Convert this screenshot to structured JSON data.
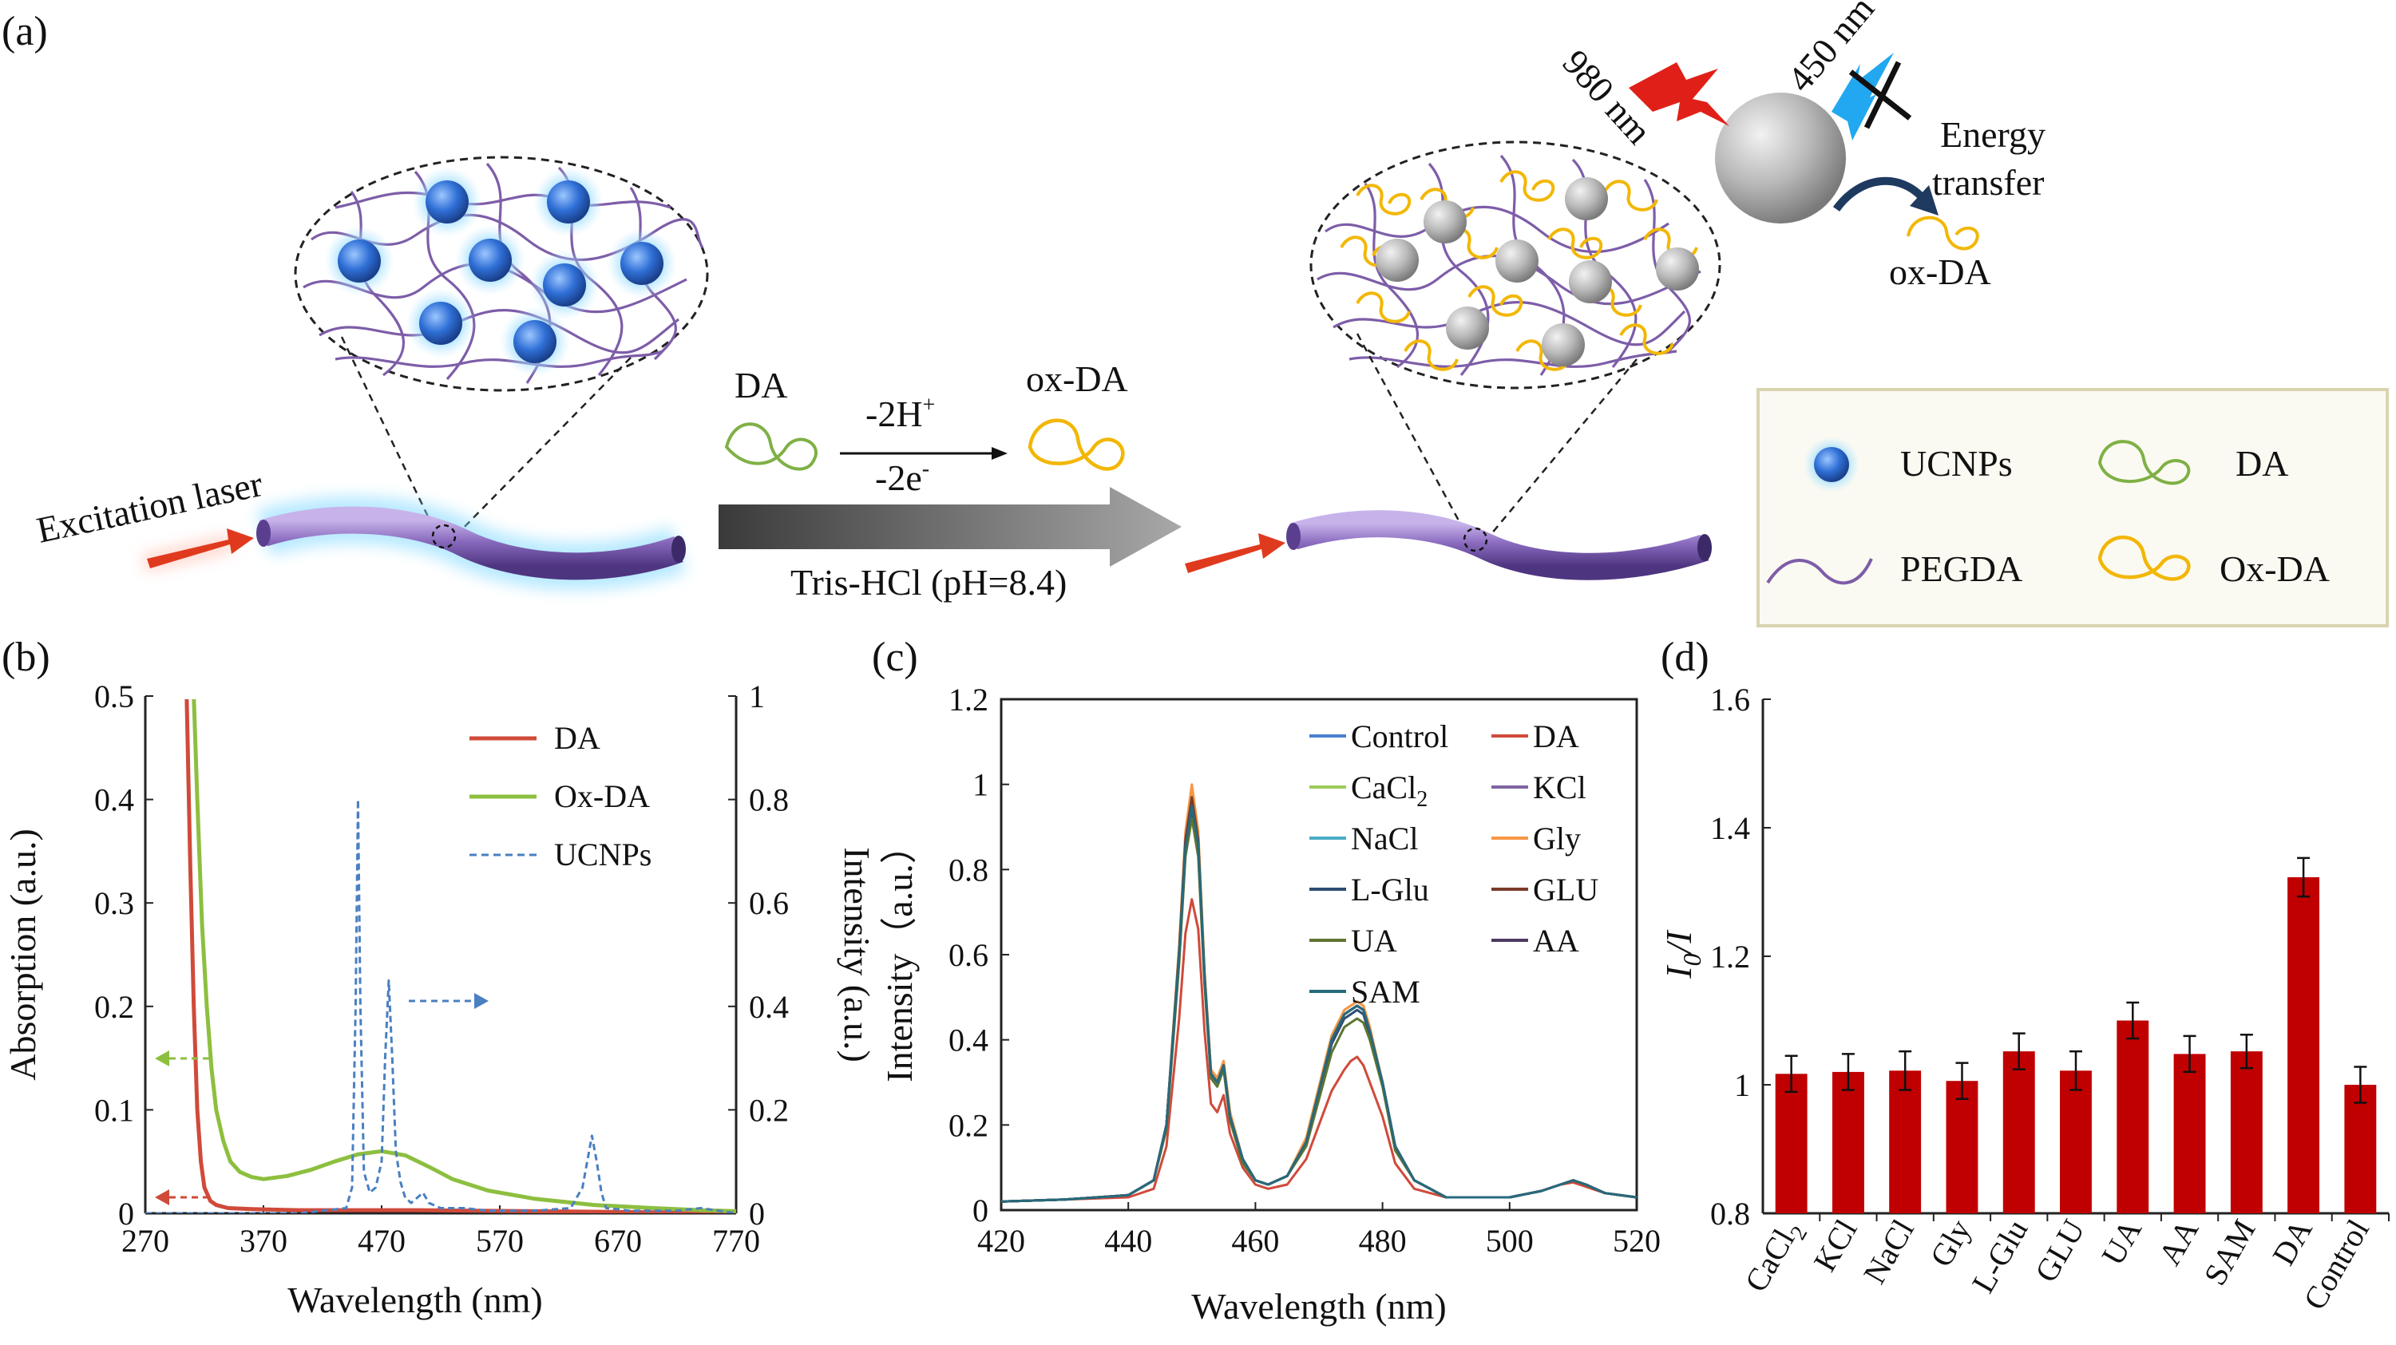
{
  "panel_a": {
    "label": "(a)",
    "excitation_laser": "Excitation laser",
    "reactant": "DA",
    "product": "ox-DA",
    "reaction_top": "-2H",
    "reaction_top_sup": "+",
    "reaction_bottom": "-2e",
    "reaction_bottom_sup": "-",
    "buffer": "Tris-HCl (pH=8.4)",
    "wavelength_in": "980 nm",
    "wavelength_out": "450 nm",
    "energy_transfer_line1": "Energy",
    "energy_transfer_line2": "transfer",
    "acceptor": "ox-DA",
    "legend": {
      "ucnps": "UCNPs",
      "da": "DA",
      "pegda": "PEGDA",
      "oxda": "Ox-DA"
    },
    "colors": {
      "ucnp_blue": "#2f6fd6",
      "fiber_purple": "#8a6bbf",
      "da_green": "#7fb046",
      "oxda_yellow": "#f2b705",
      "laser_red": "#e03a1e",
      "legend_bg": "#fbfaf2",
      "legend_border": "#d8d4b0"
    }
  },
  "chart_data": [
    {
      "panel": "(b)",
      "type": "line",
      "xlabel": "Wavelength (nm)",
      "ylabel_left": "Absorption (a.u.)",
      "ylabel_right": "Intensity (a.u.)",
      "xlim": [
        270,
        770
      ],
      "ylim_left": [
        0,
        0.5
      ],
      "ylim_right": [
        0,
        1
      ],
      "xticks": [
        "270",
        "370",
        "470",
        "570",
        "670",
        "770"
      ],
      "yticks_left": [
        "0",
        "0.1",
        "0.2",
        "0.3",
        "0.4",
        "0.5"
      ],
      "yticks_right": [
        "0",
        "0.2",
        "0.4",
        "0.6",
        "0.8",
        "1"
      ],
      "series": [
        {
          "name": "DA",
          "axis": "left",
          "color": "#d04a3a",
          "dash": false,
          "x": [
            305,
            308,
            311,
            314,
            317,
            320,
            325,
            330,
            340,
            360,
            400,
            500,
            600,
            700,
            770
          ],
          "y": [
            0.5,
            0.34,
            0.2,
            0.1,
            0.05,
            0.025,
            0.012,
            0.008,
            0.005,
            0.004,
            0.003,
            0.003,
            0.002,
            0.001,
            0.001
          ]
        },
        {
          "name": "Ox-DA",
          "axis": "left",
          "color": "#8dbf3f",
          "dash": false,
          "x": [
            311,
            314,
            318,
            322,
            326,
            330,
            336,
            342,
            350,
            360,
            370,
            390,
            410,
            430,
            450,
            470,
            490,
            510,
            530,
            560,
            600,
            650,
            700,
            740,
            770
          ],
          "y": [
            0.5,
            0.4,
            0.28,
            0.2,
            0.14,
            0.1,
            0.07,
            0.05,
            0.04,
            0.035,
            0.033,
            0.036,
            0.042,
            0.05,
            0.057,
            0.06,
            0.056,
            0.045,
            0.033,
            0.022,
            0.014,
            0.008,
            0.005,
            0.003,
            0.002
          ]
        },
        {
          "name": "UCNPs",
          "axis": "right",
          "color": "#4a7fc1",
          "dash": true,
          "x": [
            270,
            400,
            440,
            445,
            448,
            450,
            452,
            455,
            460,
            465,
            470,
            473,
            476,
            479,
            482,
            486,
            490,
            495,
            500,
            505,
            510,
            520,
            540,
            560,
            600,
            630,
            640,
            644,
            648,
            652,
            656,
            660,
            680,
            720,
            740,
            770
          ],
          "y": [
            0,
            0,
            0.01,
            0.05,
            0.4,
            0.8,
            0.4,
            0.08,
            0.04,
            0.05,
            0.1,
            0.3,
            0.45,
            0.3,
            0.12,
            0.06,
            0.03,
            0.02,
            0.03,
            0.04,
            0.02,
            0.01,
            0.01,
            0.005,
            0.005,
            0.01,
            0.05,
            0.1,
            0.15,
            0.1,
            0.04,
            0.01,
            0.005,
            0.005,
            0.01,
            0
          ]
        }
      ],
      "legend": [
        "DA",
        "Ox-DA",
        "UCNPs"
      ]
    },
    {
      "panel": "(c)",
      "type": "line",
      "xlabel": "Wavelength (nm)",
      "ylabel": "Intensity（a.u.）",
      "xlim": [
        420,
        520
      ],
      "ylim": [
        0,
        1.2
      ],
      "xticks": [
        "420",
        "440",
        "460",
        "480",
        "500",
        "520"
      ],
      "yticks": [
        "0",
        "0.2",
        "0.4",
        "0.6",
        "0.8",
        "1",
        "1.2"
      ],
      "x": [
        420,
        430,
        440,
        444,
        446,
        448,
        449,
        450,
        451,
        452,
        453,
        454,
        455,
        456,
        458,
        460,
        462,
        465,
        468,
        470,
        472,
        474,
        475,
        476,
        477,
        478,
        480,
        482,
        485,
        490,
        500,
        505,
        508,
        510,
        512,
        515,
        520
      ],
      "series": [
        {
          "name": "Control",
          "color": "#4b7fd0",
          "y": [
            0.02,
            0.025,
            0.035,
            0.07,
            0.2,
            0.6,
            0.85,
            0.95,
            0.86,
            0.55,
            0.32,
            0.3,
            0.34,
            0.22,
            0.12,
            0.07,
            0.06,
            0.08,
            0.16,
            0.28,
            0.4,
            0.46,
            0.47,
            0.48,
            0.47,
            0.42,
            0.3,
            0.15,
            0.07,
            0.03,
            0.03,
            0.045,
            0.06,
            0.07,
            0.06,
            0.04,
            0.03
          ]
        },
        {
          "name": "DA",
          "color": "#d04a3a",
          "y": [
            0.02,
            0.025,
            0.03,
            0.05,
            0.15,
            0.45,
            0.65,
            0.73,
            0.66,
            0.42,
            0.25,
            0.23,
            0.27,
            0.18,
            0.1,
            0.06,
            0.05,
            0.06,
            0.12,
            0.2,
            0.28,
            0.33,
            0.35,
            0.36,
            0.34,
            0.3,
            0.22,
            0.11,
            0.05,
            0.03,
            0.03,
            0.045,
            0.06,
            0.065,
            0.055,
            0.04,
            0.03
          ]
        },
        {
          "name": "CaCl2",
          "label": "CaCl",
          "sub": "2",
          "color": "#9ccc5a",
          "y": [
            0.02,
            0.025,
            0.035,
            0.07,
            0.2,
            0.62,
            0.88,
            0.99,
            0.88,
            0.56,
            0.33,
            0.31,
            0.35,
            0.23,
            0.12,
            0.07,
            0.06,
            0.08,
            0.17,
            0.29,
            0.41,
            0.47,
            0.48,
            0.49,
            0.48,
            0.43,
            0.3,
            0.15,
            0.07,
            0.03,
            0.03,
            0.045,
            0.06,
            0.07,
            0.06,
            0.04,
            0.03
          ]
        },
        {
          "name": "KCl",
          "color": "#8064a2",
          "y": [
            0.02,
            0.025,
            0.035,
            0.07,
            0.2,
            0.6,
            0.86,
            0.96,
            0.86,
            0.55,
            0.32,
            0.3,
            0.34,
            0.22,
            0.12,
            0.07,
            0.06,
            0.08,
            0.16,
            0.28,
            0.4,
            0.46,
            0.47,
            0.48,
            0.47,
            0.42,
            0.3,
            0.15,
            0.07,
            0.03,
            0.03,
            0.045,
            0.06,
            0.07,
            0.06,
            0.04,
            0.03
          ]
        },
        {
          "name": "NaCl",
          "color": "#4bacc6",
          "y": [
            0.02,
            0.025,
            0.035,
            0.07,
            0.2,
            0.61,
            0.87,
            0.97,
            0.87,
            0.55,
            0.32,
            0.3,
            0.34,
            0.22,
            0.12,
            0.07,
            0.06,
            0.08,
            0.16,
            0.28,
            0.4,
            0.46,
            0.47,
            0.48,
            0.47,
            0.42,
            0.3,
            0.15,
            0.07,
            0.03,
            0.03,
            0.045,
            0.06,
            0.07,
            0.06,
            0.04,
            0.03
          ]
        },
        {
          "name": "Gly",
          "color": "#f79646",
          "y": [
            0.02,
            0.025,
            0.035,
            0.07,
            0.2,
            0.62,
            0.89,
            1.0,
            0.89,
            0.56,
            0.33,
            0.31,
            0.35,
            0.23,
            0.12,
            0.07,
            0.06,
            0.08,
            0.17,
            0.29,
            0.41,
            0.47,
            0.48,
            0.49,
            0.48,
            0.43,
            0.3,
            0.15,
            0.07,
            0.03,
            0.03,
            0.045,
            0.06,
            0.07,
            0.06,
            0.04,
            0.03
          ]
        },
        {
          "name": "L-Glu",
          "color": "#2c4d75",
          "y": [
            0.02,
            0.025,
            0.035,
            0.07,
            0.2,
            0.6,
            0.85,
            0.94,
            0.85,
            0.54,
            0.32,
            0.3,
            0.34,
            0.22,
            0.12,
            0.07,
            0.06,
            0.08,
            0.16,
            0.27,
            0.39,
            0.45,
            0.46,
            0.47,
            0.46,
            0.41,
            0.3,
            0.15,
            0.07,
            0.03,
            0.03,
            0.045,
            0.06,
            0.07,
            0.06,
            0.04,
            0.03
          ]
        },
        {
          "name": "GLU",
          "color": "#7b3a2a",
          "y": [
            0.02,
            0.025,
            0.035,
            0.07,
            0.2,
            0.61,
            0.87,
            0.97,
            0.87,
            0.55,
            0.32,
            0.3,
            0.34,
            0.22,
            0.12,
            0.07,
            0.06,
            0.08,
            0.16,
            0.28,
            0.4,
            0.46,
            0.47,
            0.48,
            0.47,
            0.42,
            0.3,
            0.15,
            0.07,
            0.03,
            0.03,
            0.045,
            0.06,
            0.07,
            0.06,
            0.04,
            0.03
          ]
        },
        {
          "name": "UA",
          "color": "#5f7530",
          "y": [
            0.02,
            0.025,
            0.035,
            0.07,
            0.19,
            0.58,
            0.83,
            0.92,
            0.83,
            0.53,
            0.31,
            0.29,
            0.33,
            0.21,
            0.11,
            0.07,
            0.06,
            0.08,
            0.15,
            0.26,
            0.37,
            0.43,
            0.44,
            0.45,
            0.44,
            0.4,
            0.29,
            0.14,
            0.07,
            0.03,
            0.03,
            0.045,
            0.06,
            0.07,
            0.06,
            0.04,
            0.03
          ]
        },
        {
          "name": "AA",
          "color": "#4d3b62",
          "y": [
            0.02,
            0.025,
            0.035,
            0.07,
            0.2,
            0.6,
            0.86,
            0.95,
            0.86,
            0.55,
            0.32,
            0.3,
            0.34,
            0.22,
            0.12,
            0.07,
            0.06,
            0.08,
            0.16,
            0.28,
            0.4,
            0.46,
            0.47,
            0.48,
            0.47,
            0.42,
            0.3,
            0.15,
            0.07,
            0.03,
            0.03,
            0.045,
            0.06,
            0.07,
            0.06,
            0.04,
            0.03
          ]
        },
        {
          "name": "SAM",
          "color": "#276a7c",
          "y": [
            0.02,
            0.025,
            0.035,
            0.07,
            0.2,
            0.6,
            0.85,
            0.95,
            0.86,
            0.55,
            0.32,
            0.3,
            0.34,
            0.22,
            0.12,
            0.07,
            0.06,
            0.08,
            0.16,
            0.28,
            0.4,
            0.46,
            0.47,
            0.48,
            0.47,
            0.42,
            0.3,
            0.15,
            0.07,
            0.03,
            0.03,
            0.045,
            0.06,
            0.07,
            0.06,
            0.04,
            0.03
          ]
        }
      ]
    },
    {
      "panel": "(d)",
      "type": "bar",
      "ylabel": "I",
      "ylabel_sub": "0",
      "ylabel_tail": "/I",
      "ylim": [
        0.8,
        1.6
      ],
      "yticks": [
        "0.8",
        "1",
        "1.2",
        "1.4",
        "1.6"
      ],
      "bar_color": "#c00000",
      "categories": [
        "CaCl2",
        "KCl",
        "NaCl",
        "Gly",
        "L-Glu",
        "GLU",
        "UA",
        "AA",
        "SAM",
        "DA",
        "Control"
      ],
      "category_labels": [
        {
          "text": "CaCl",
          "sub": "2"
        },
        {
          "text": "KCl"
        },
        {
          "text": "NaCl"
        },
        {
          "text": "Gly"
        },
        {
          "text": "L-Glu"
        },
        {
          "text": "GLU"
        },
        {
          "text": "UA"
        },
        {
          "text": "AA"
        },
        {
          "text": "SAM"
        },
        {
          "text": "DA"
        },
        {
          "text": "Control"
        }
      ],
      "values": [
        1.017,
        1.02,
        1.022,
        1.006,
        1.052,
        1.022,
        1.1,
        1.048,
        1.052,
        1.323,
        1.0
      ],
      "errors": [
        0.028,
        0.028,
        0.03,
        0.028,
        0.028,
        0.03,
        0.028,
        0.028,
        0.026,
        0.03,
        0.028
      ]
    }
  ]
}
